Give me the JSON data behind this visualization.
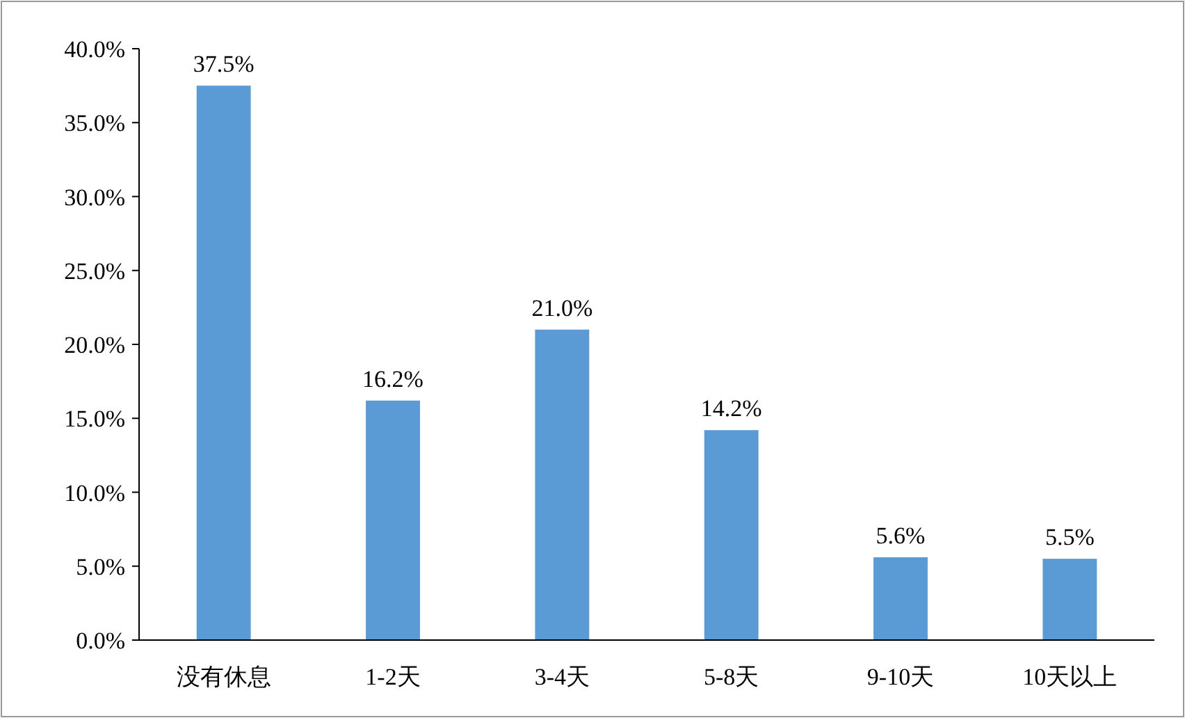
{
  "chart_data": {
    "type": "bar",
    "categories": [
      "没有休息",
      "1-2天",
      "3-4天",
      "5-8天",
      "9-10天",
      "10天以上"
    ],
    "series": [
      {
        "color": "#5b9bd5",
        "values": [
          37.5,
          16.2,
          21.0,
          14.2,
          5.6,
          5.5
        ],
        "value_labels": [
          "37.5%",
          "16.2%",
          "21.0%",
          "14.2%",
          "5.6%",
          "5.5%"
        ]
      }
    ],
    "ylim": [
      0,
      40
    ],
    "yticks": [
      {
        "value": 0,
        "label": "0.0%"
      },
      {
        "value": 5,
        "label": "5.0%"
      },
      {
        "value": 10,
        "label": "10.0%"
      },
      {
        "value": 15,
        "label": "15.0%"
      },
      {
        "value": 20,
        "label": "20.0%"
      },
      {
        "value": 25,
        "label": "25.0%"
      },
      {
        "value": 30,
        "label": "30.0%"
      },
      {
        "value": 35,
        "label": "35.0%"
      },
      {
        "value": 40,
        "label": "40.0%"
      }
    ],
    "grid": false
  }
}
